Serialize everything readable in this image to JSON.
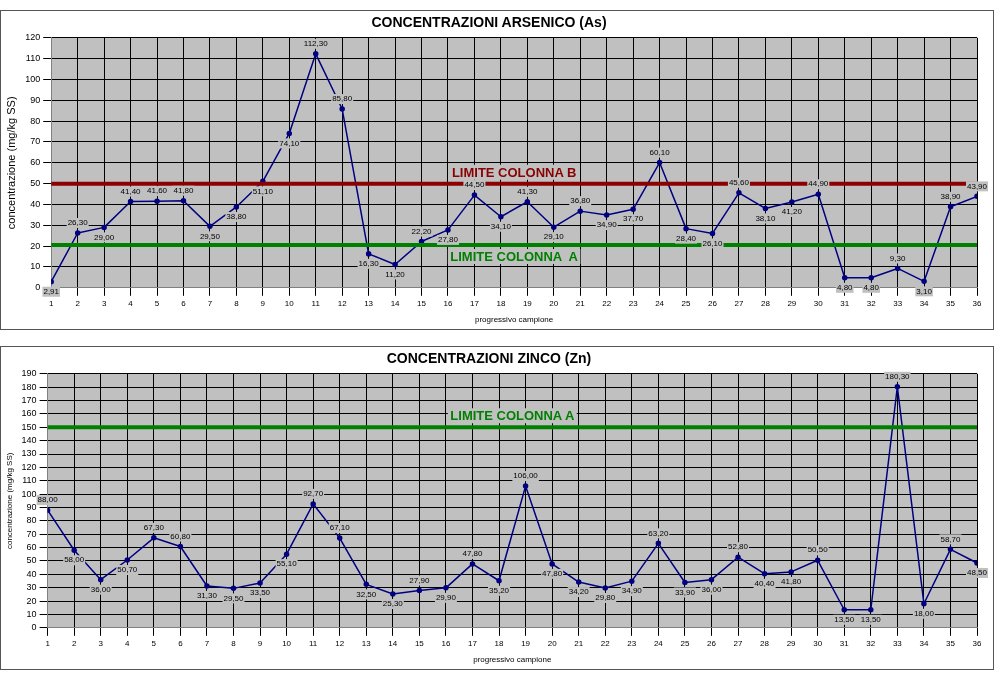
{
  "chart_data": [
    {
      "type": "line",
      "title": "CONCENTRAZIONI ARSENICO (As)",
      "xlabel": "progressivo campione",
      "ylabel": "concentrazione (mg/kg SS)",
      "x": [
        1,
        2,
        3,
        4,
        5,
        6,
        7,
        8,
        9,
        10,
        11,
        12,
        13,
        14,
        15,
        16,
        17,
        18,
        19,
        20,
        21,
        22,
        23,
        24,
        25,
        26,
        27,
        28,
        29,
        30,
        31,
        32,
        33,
        34,
        35,
        36
      ],
      "values": [
        2.91,
        26.3,
        29.0,
        41.4,
        41.6,
        41.8,
        29.5,
        38.8,
        51.1,
        74.1,
        112.3,
        85.8,
        16.3,
        11.2,
        22.2,
        27.8,
        44.5,
        34.1,
        41.3,
        29.1,
        36.8,
        34.9,
        37.7,
        60.1,
        28.4,
        26.1,
        45.6,
        38.1,
        41.2,
        44.9,
        4.8,
        4.8,
        9.3,
        3.1,
        38.9,
        43.9
      ],
      "value_labels": [
        "2,91",
        "26,30",
        "29,00",
        "41,40",
        "41,60",
        "41,80",
        "29,50",
        "38,80",
        "51,10",
        "74,10",
        "112,30",
        "85,80",
        "16,30",
        "11,20",
        "22,20",
        "27,80",
        "44,50",
        "34,10",
        "41,30",
        "29,10",
        "36,80",
        "34,90",
        "37,70",
        "60,10",
        "28,40",
        "26,10",
        "45,60",
        "38,10",
        "41,20",
        "44,90",
        "4,80",
        "4,80",
        "9,30",
        "3,10",
        "38,90",
        "43,90"
      ],
      "color": "#000080",
      "marker": "circle",
      "grid": true,
      "xlim": [
        1,
        36
      ],
      "xticks": [
        1,
        2,
        3,
        4,
        5,
        6,
        7,
        8,
        9,
        10,
        11,
        12,
        13,
        14,
        15,
        16,
        17,
        18,
        19,
        20,
        21,
        22,
        23,
        24,
        25,
        26,
        27,
        28,
        29,
        30,
        31,
        32,
        33,
        34,
        35,
        36
      ],
      "ylim": [
        0,
        120
      ],
      "yticks": [
        0,
        10,
        20,
        30,
        40,
        50,
        60,
        70,
        80,
        90,
        100,
        110,
        120
      ],
      "ref_lines": [
        {
          "axis": "y",
          "value": 50,
          "label": "LIMITE COLONNA B",
          "color": "#8b0000"
        },
        {
          "axis": "y",
          "value": 20.5,
          "label": "LIMITE COLONNA  A",
          "color": "#008000"
        }
      ]
    },
    {
      "type": "line",
      "title": "CONCENTRAZIONI ZINCO (Zn)",
      "xlabel": "progressivo campione",
      "ylabel": "concentrazione (mg/kg SS)",
      "x": [
        1,
        2,
        3,
        4,
        5,
        6,
        7,
        8,
        9,
        10,
        11,
        12,
        13,
        14,
        15,
        16,
        17,
        18,
        19,
        20,
        21,
        22,
        23,
        24,
        25,
        26,
        27,
        28,
        29,
        30,
        31,
        32,
        33,
        34,
        35,
        36
      ],
      "values": [
        88.0,
        58.0,
        36.0,
        50.7,
        67.3,
        60.8,
        31.3,
        29.5,
        33.5,
        55.1,
        92.7,
        67.1,
        32.5,
        25.3,
        27.9,
        29.9,
        47.8,
        35.2,
        106.0,
        47.8,
        34.2,
        29.8,
        34.9,
        63.2,
        33.9,
        36.0,
        52.8,
        40.4,
        41.8,
        50.5,
        13.5,
        13.5,
        180.3,
        18.0,
        58.7,
        48.5
      ],
      "value_labels": [
        "88,00",
        "58,00",
        "36,00",
        "50,70",
        "67,30",
        "60,80",
        "31,30",
        "29,50",
        "33,50",
        "55,10",
        "92,70",
        "67,10",
        "32,50",
        "25,30",
        "27,90",
        "29,90",
        "47,80",
        "35,20",
        "106,00",
        "47,80",
        "34,20",
        "29,80",
        "34,90",
        "63,20",
        "33,90",
        "36,00",
        "52,80",
        "40,40",
        "41,80",
        "50,50",
        "13,50",
        "13,50",
        "180,30",
        "18,00",
        "58,70",
        "48,50"
      ],
      "color": "#000080",
      "marker": "circle",
      "grid": true,
      "xlim": [
        1,
        36
      ],
      "xticks": [
        1,
        2,
        3,
        4,
        5,
        6,
        7,
        8,
        9,
        10,
        11,
        12,
        13,
        14,
        15,
        16,
        17,
        18,
        19,
        20,
        21,
        22,
        23,
        24,
        25,
        26,
        27,
        28,
        29,
        30,
        31,
        32,
        33,
        34,
        35,
        36
      ],
      "ylim": [
        0,
        190
      ],
      "yticks": [
        0,
        10,
        20,
        30,
        40,
        50,
        60,
        70,
        80,
        90,
        100,
        110,
        120,
        130,
        140,
        150,
        160,
        170,
        180,
        190
      ],
      "ref_lines": [
        {
          "axis": "y",
          "value": 150,
          "label": "LIMITE COLONNA A",
          "color": "#008000"
        }
      ]
    }
  ]
}
